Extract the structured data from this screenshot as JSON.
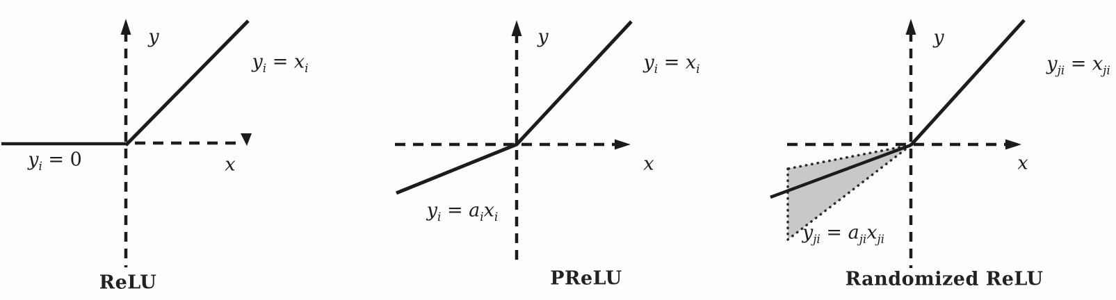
{
  "figure": {
    "background": "#fdfdfd",
    "line_color": "#1c1c1c",
    "shade_color": "#c8c8c8",
    "dot_edge_color": "#2a2a2a"
  },
  "panels": [
    {
      "id": "relu",
      "caption": "ReLU",
      "axis": {
        "x": "x",
        "y": "y"
      },
      "positive_eq": [
        {
          "v": "y",
          "s": "i"
        },
        {
          "t": " = "
        },
        {
          "v": "x",
          "s": "i"
        }
      ],
      "negative_eq": [
        {
          "v": "y",
          "s": "i"
        },
        {
          "t": " = 0"
        }
      ]
    },
    {
      "id": "prelu",
      "caption": "PReLU",
      "axis": {
        "x": "x",
        "y": "y"
      },
      "positive_eq": [
        {
          "v": "y",
          "s": "i"
        },
        {
          "t": " = "
        },
        {
          "v": "x",
          "s": "i"
        }
      ],
      "negative_eq": [
        {
          "v": "y",
          "s": "i"
        },
        {
          "t": " = "
        },
        {
          "v": "a",
          "s": "i"
        },
        {
          "v": "x",
          "s": "i"
        }
      ]
    },
    {
      "id": "randomized-relu",
      "caption": "Randomized ReLU",
      "axis": {
        "x": "x",
        "y": "y"
      },
      "positive_eq": [
        {
          "v": "y",
          "s": "ji"
        },
        {
          "t": " = "
        },
        {
          "v": "x",
          "s": "ji"
        }
      ],
      "negative_eq": [
        {
          "v": "y",
          "s": "ji"
        },
        {
          "t": " = "
        },
        {
          "v": "a",
          "s": "ji"
        },
        {
          "v": "x",
          "s": "ji"
        }
      ]
    }
  ]
}
